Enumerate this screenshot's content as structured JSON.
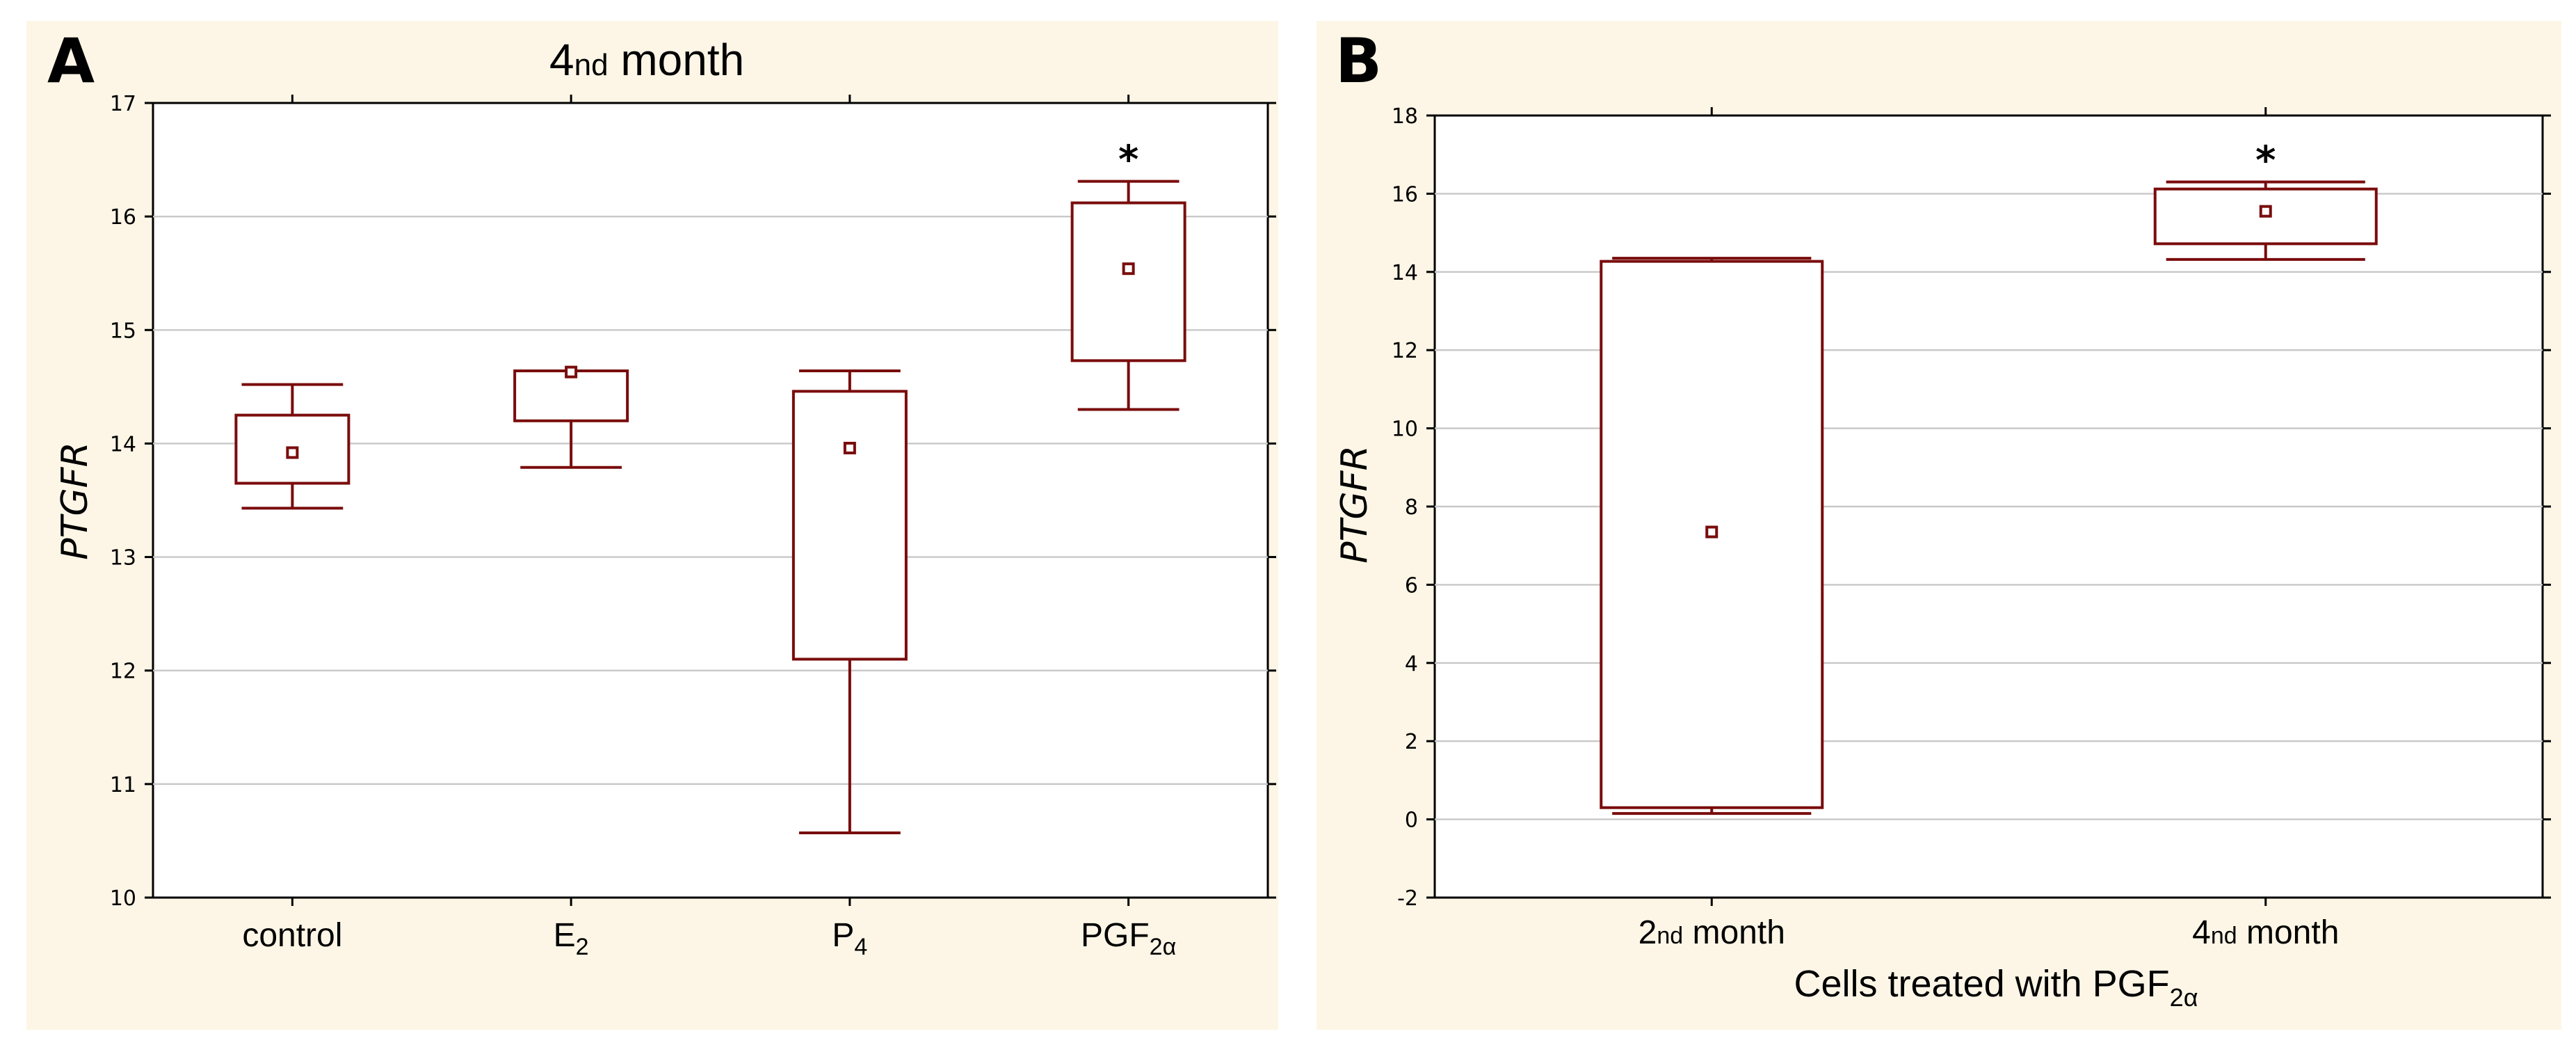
{
  "colors": {
    "panel_background": "#fdf6e6",
    "box": "#7a0c0c",
    "grid": "#c8c8c8"
  },
  "chart_data": [
    {
      "type": "box",
      "panel_letter": "A",
      "title": {
        "main": "4",
        "sup": "nd",
        "rest": " month"
      },
      "ylabel": "PTGFR",
      "xlabel": null,
      "ylim": [
        10,
        17
      ],
      "yticks": [
        10,
        11,
        12,
        13,
        14,
        15,
        16,
        17
      ],
      "grid": true,
      "categories": [
        {
          "main": "control",
          "sub": ""
        },
        {
          "main": "E",
          "sub": "2"
        },
        {
          "main": "P",
          "sub": "4"
        },
        {
          "main": "PGF",
          "sub": "2α"
        }
      ],
      "boxes": [
        {
          "whisker_low": 13.43,
          "q1": 13.65,
          "center": 13.92,
          "q3": 14.25,
          "whisker_high": 14.52,
          "significance": ""
        },
        {
          "whisker_low": 13.79,
          "q1": 14.2,
          "center": 14.63,
          "q3": 14.64,
          "whisker_high": 14.64,
          "significance": ""
        },
        {
          "whisker_low": 10.57,
          "q1": 12.1,
          "center": 13.96,
          "q3": 14.46,
          "whisker_high": 14.64,
          "significance": ""
        },
        {
          "whisker_low": 14.3,
          "q1": 14.73,
          "center": 15.54,
          "q3": 16.12,
          "whisker_high": 16.31,
          "significance": "*"
        }
      ]
    },
    {
      "type": "box",
      "panel_letter": "B",
      "title": null,
      "ylabel": "PTGFR",
      "xlabel": {
        "main": "Cells treated with PGF",
        "sub": "2α"
      },
      "ylim": [
        -2,
        18
      ],
      "yticks": [
        -2,
        0,
        2,
        4,
        6,
        8,
        10,
        12,
        14,
        16,
        18
      ],
      "grid": true,
      "categories": [
        {
          "pre": "2",
          "sup": "nd",
          "post": " month"
        },
        {
          "pre": "4",
          "sup": "nd",
          "post": " month"
        }
      ],
      "boxes": [
        {
          "whisker_low": 0.15,
          "q1": 0.3,
          "center": 7.35,
          "q3": 14.27,
          "whisker_high": 14.35,
          "significance": ""
        },
        {
          "whisker_low": 14.32,
          "q1": 14.72,
          "center": 15.55,
          "q3": 16.12,
          "whisker_high": 16.3,
          "significance": "*"
        }
      ]
    }
  ]
}
